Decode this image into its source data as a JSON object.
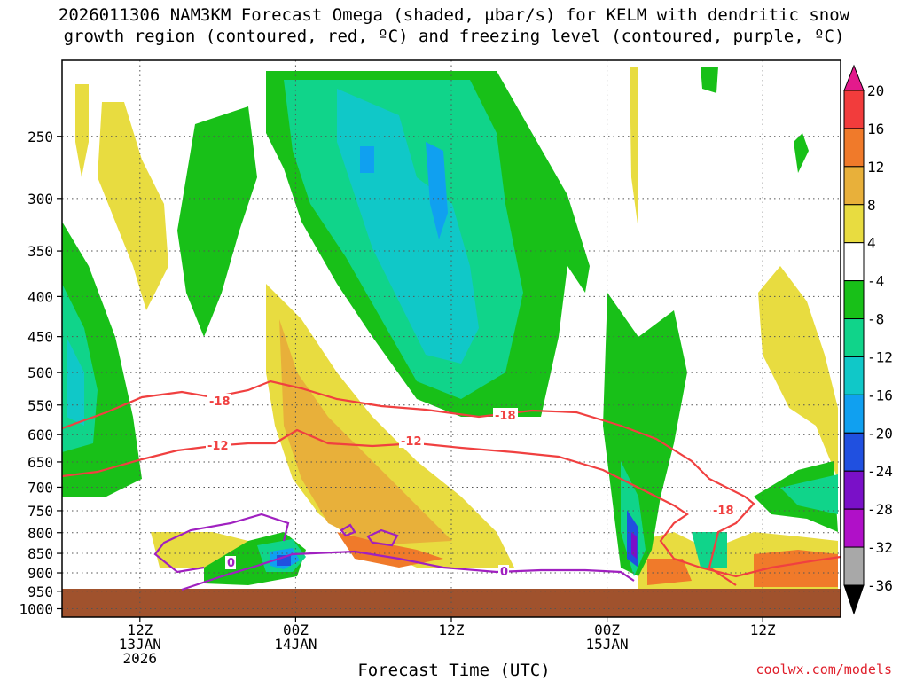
{
  "header": {
    "title_line1": "2026011306 NAM3KM Forecast Omega (shaded, µbar/s) for KELM with dendritic snow",
    "title_line2": "growth region (contoured, red, ºC) and freezing level (contoured, purple, ºC)"
  },
  "footer": {
    "credit": "coolwx.com/models"
  },
  "chart_data": {
    "type": "heatmap",
    "title": "2026011306 NAM3KM Forecast Omega (shaded, µbar/s) for KELM with dendritic snow growth region (contoured, red, ºC) and freezing level (contoured, purple, ºC)",
    "xlabel": "Forecast Time (UTC)",
    "ylabel": "",
    "x_ticks": [
      {
        "label": "12Z",
        "sub1": "13JAN",
        "sub2": "2026",
        "hour": 6
      },
      {
        "label": "00Z",
        "sub1": "14JAN",
        "sub2": "",
        "hour": 18
      },
      {
        "label": "12Z",
        "sub1": "",
        "sub2": "",
        "hour": 30
      },
      {
        "label": "00Z",
        "sub1": "15JAN",
        "sub2": "",
        "hour": 42
      },
      {
        "label": "12Z",
        "sub1": "",
        "sub2": "",
        "hour": 54
      }
    ],
    "x_range_hours": [
      0,
      60
    ],
    "y_ticks": [
      "250",
      "300",
      "350",
      "400",
      "450",
      "500",
      "550",
      "600",
      "650",
      "700",
      "750",
      "800",
      "850",
      "900",
      "950",
      "1000"
    ],
    "y_range_hPa": [
      200,
      1025
    ],
    "y_scale": "log-pressure",
    "grid": true,
    "colorbar": {
      "labels": [
        "20",
        "16",
        "12",
        "8",
        "4",
        "-4",
        "-8",
        "-12",
        "-16",
        "-20",
        "-24",
        "-28",
        "-32",
        "-36"
      ],
      "colors": [
        "#e31a8c",
        "#f23c3c",
        "#f07a2a",
        "#e8b03a",
        "#e8dc40",
        "#ffffff",
        "#18c018",
        "#10d48a",
        "#10c8c8",
        "#10a0f0",
        "#2050e0",
        "#7a10c8",
        "#b010c8",
        "#a8a8a8",
        "#000000"
      ]
    },
    "contours": [
      {
        "name": "-18",
        "color": "#f04040",
        "label": "-18"
      },
      {
        "name": "-12",
        "color": "#f04040",
        "label": "-12"
      },
      {
        "name": "0",
        "color": "#a020c0",
        "label": "0"
      }
    ],
    "ground_color": "#a0522d"
  }
}
